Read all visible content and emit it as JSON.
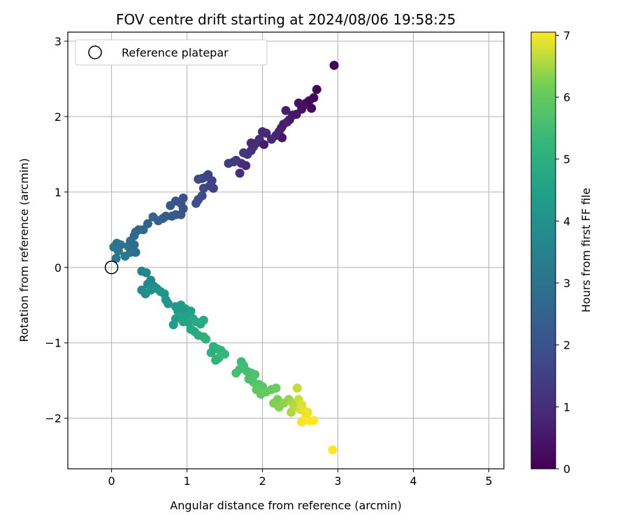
{
  "chart_data": {
    "type": "scatter",
    "title": "FOV centre drift starting at 2024/08/06 19:58:25",
    "xlabel": "Angular distance from reference (arcmin)",
    "ylabel": "Rotation from reference (arcmin)",
    "xlim": [
      -0.58,
      5.2
    ],
    "ylim": [
      -2.67,
      3.12
    ],
    "xticks": [
      0,
      1,
      2,
      3,
      4,
      5
    ],
    "yticks": [
      -2,
      -1,
      0,
      1,
      2,
      3
    ],
    "grid": true,
    "legend": {
      "placement": "top-left",
      "label": "Reference platepar"
    },
    "reference_point": {
      "x": 0,
      "y": 0
    },
    "colorbar": {
      "label": "Hours from first FF file",
      "min": 0,
      "max": 7.05,
      "ticks": [
        0,
        1,
        2,
        3,
        4,
        5,
        6,
        7
      ],
      "colormap": "viridis"
    },
    "series": [
      {
        "points": [
          [
            2.95,
            2.68,
            0.05
          ],
          [
            2.72,
            2.36,
            0.1
          ],
          [
            2.68,
            2.25,
            0.15
          ],
          [
            2.62,
            2.21,
            0.2
          ],
          [
            2.58,
            2.18,
            0.18
          ],
          [
            2.55,
            2.15,
            0.3
          ],
          [
            2.65,
            2.11,
            0.22
          ],
          [
            2.52,
            2.1,
            0.35
          ],
          [
            2.48,
            2.18,
            0.4
          ],
          [
            2.45,
            2.03,
            0.45
          ],
          [
            2.4,
            2.02,
            0.5
          ],
          [
            2.36,
            1.96,
            0.55
          ],
          [
            2.31,
            2.08,
            0.6
          ],
          [
            2.33,
            1.93,
            0.65
          ],
          [
            2.28,
            1.9,
            0.7
          ],
          [
            2.25,
            1.85,
            0.62
          ],
          [
            2.22,
            1.8,
            0.75
          ],
          [
            2.26,
            1.72,
            0.4
          ],
          [
            2.18,
            1.75,
            0.8
          ],
          [
            2.12,
            1.7,
            0.85
          ],
          [
            2.05,
            1.78,
            0.9
          ],
          [
            2.0,
            1.8,
            0.95
          ],
          [
            1.96,
            1.7,
            1.0
          ],
          [
            1.92,
            1.65,
            1.05
          ],
          [
            1.88,
            1.6,
            1.1
          ],
          [
            2.02,
            1.63,
            0.6
          ],
          [
            1.85,
            1.55,
            1.15
          ],
          [
            1.8,
            1.5,
            1.2
          ],
          [
            1.75,
            1.52,
            1.25
          ],
          [
            1.72,
            1.38,
            1.1
          ],
          [
            1.7,
            1.25,
            1.0
          ],
          [
            1.78,
            1.35,
            0.9
          ],
          [
            1.65,
            1.42,
            1.3
          ],
          [
            1.62,
            1.4,
            1.35
          ],
          [
            1.55,
            1.38,
            1.4
          ],
          [
            1.85,
            1.65,
            0.95
          ],
          [
            1.33,
            1.15,
            1.5
          ],
          [
            1.28,
            1.23,
            1.55
          ],
          [
            1.25,
            1.2,
            1.6
          ],
          [
            1.2,
            1.18,
            1.65
          ],
          [
            1.15,
            1.17,
            1.7
          ],
          [
            1.22,
            1.05,
            1.75
          ],
          [
            1.3,
            1.08,
            1.6
          ],
          [
            1.35,
            1.05,
            1.5
          ],
          [
            1.2,
            0.95,
            1.8
          ],
          [
            1.15,
            0.9,
            1.85
          ],
          [
            1.12,
            0.85,
            1.9
          ],
          [
            0.95,
            0.92,
            2.0
          ],
          [
            0.92,
            0.85,
            2.05
          ],
          [
            0.85,
            0.88,
            2.1
          ],
          [
            0.78,
            0.82,
            2.15
          ],
          [
            0.95,
            0.78,
            2.05
          ],
          [
            0.92,
            0.7,
            2.1
          ],
          [
            0.85,
            0.7,
            2.2
          ],
          [
            0.8,
            0.68,
            2.25
          ],
          [
            0.72,
            0.68,
            2.3
          ],
          [
            0.68,
            0.65,
            2.35
          ],
          [
            0.62,
            0.62,
            2.4
          ],
          [
            0.55,
            0.67,
            2.45
          ],
          [
            0.48,
            0.58,
            2.5
          ],
          [
            0.42,
            0.5,
            2.55
          ],
          [
            0.36,
            0.5,
            2.6
          ],
          [
            0.32,
            0.47,
            2.65
          ],
          [
            0.3,
            0.42,
            2.7
          ],
          [
            0.25,
            0.35,
            2.75
          ],
          [
            0.3,
            0.3,
            2.8
          ],
          [
            0.32,
            0.2,
            2.85
          ],
          [
            0.22,
            0.28,
            2.9
          ],
          [
            0.25,
            0.2,
            2.95
          ],
          [
            0.12,
            0.3,
            3.0
          ],
          [
            0.07,
            0.32,
            3.05
          ],
          [
            0.03,
            0.27,
            3.1
          ],
          [
            0.09,
            0.22,
            3.15
          ],
          [
            0.06,
            0.12,
            3.2
          ],
          [
            0.18,
            0.15,
            3.25
          ],
          [
            0.4,
            -0.05,
            3.6
          ],
          [
            0.46,
            -0.07,
            3.65
          ],
          [
            0.52,
            -0.17,
            3.7
          ],
          [
            0.48,
            -0.22,
            3.75
          ],
          [
            0.56,
            -0.25,
            3.8
          ],
          [
            0.4,
            -0.3,
            3.85
          ],
          [
            0.45,
            -0.35,
            3.9
          ],
          [
            0.52,
            -0.3,
            3.95
          ],
          [
            0.6,
            -0.28,
            4.0
          ],
          [
            0.65,
            -0.32,
            4.05
          ],
          [
            0.7,
            -0.35,
            4.1
          ],
          [
            0.72,
            -0.43,
            4.15
          ],
          [
            0.75,
            -0.48,
            4.2
          ],
          [
            0.85,
            -0.52,
            4.25
          ],
          [
            0.92,
            -0.5,
            4.3
          ],
          [
            0.88,
            -0.58,
            4.35
          ],
          [
            0.95,
            -0.6,
            4.4
          ],
          [
            0.98,
            -0.55,
            4.45
          ],
          [
            1.05,
            -0.58,
            4.5
          ],
          [
            1.0,
            -0.65,
            4.55
          ],
          [
            0.9,
            -0.65,
            4.6
          ],
          [
            0.85,
            -0.68,
            4.5
          ],
          [
            0.82,
            -0.76,
            4.4
          ],
          [
            0.95,
            -0.72,
            4.6
          ],
          [
            1.02,
            -0.73,
            4.65
          ],
          [
            1.08,
            -0.68,
            4.7
          ],
          [
            1.12,
            -0.72,
            4.75
          ],
          [
            1.18,
            -0.75,
            4.8
          ],
          [
            1.22,
            -0.7,
            4.85
          ],
          [
            1.05,
            -0.82,
            4.7
          ],
          [
            1.1,
            -0.85,
            4.8
          ],
          [
            1.15,
            -0.9,
            4.9
          ],
          [
            1.22,
            -0.92,
            4.95
          ],
          [
            1.25,
            -0.95,
            5.0
          ],
          [
            1.35,
            -1.05,
            5.05
          ],
          [
            1.4,
            -1.08,
            5.1
          ],
          [
            1.32,
            -1.13,
            5.0
          ],
          [
            1.45,
            -1.1,
            5.15
          ],
          [
            1.5,
            -1.15,
            5.2
          ],
          [
            1.42,
            -1.2,
            5.25
          ],
          [
            1.38,
            -1.23,
            5.1
          ],
          [
            1.72,
            -1.25,
            5.4
          ],
          [
            1.75,
            -1.3,
            5.45
          ],
          [
            1.7,
            -1.35,
            5.5
          ],
          [
            1.65,
            -1.4,
            5.55
          ],
          [
            1.8,
            -1.38,
            5.5
          ],
          [
            1.85,
            -1.4,
            5.6
          ],
          [
            1.82,
            -1.48,
            5.65
          ],
          [
            1.9,
            -1.42,
            5.7
          ],
          [
            1.88,
            -1.52,
            5.75
          ],
          [
            1.95,
            -1.55,
            5.8
          ],
          [
            2.0,
            -1.58,
            5.85
          ],
          [
            1.92,
            -1.62,
            5.9
          ],
          [
            1.98,
            -1.68,
            5.95
          ],
          [
            2.05,
            -1.65,
            6.0
          ],
          [
            2.12,
            -1.62,
            6.05
          ],
          [
            2.18,
            -1.6,
            6.1
          ],
          [
            2.2,
            -1.75,
            6.2
          ],
          [
            2.15,
            -1.8,
            6.25
          ],
          [
            2.22,
            -1.85,
            6.3
          ],
          [
            2.28,
            -1.8,
            6.35
          ],
          [
            2.35,
            -1.75,
            6.4
          ],
          [
            2.4,
            -1.8,
            6.5
          ],
          [
            2.38,
            -1.92,
            6.55
          ],
          [
            2.42,
            -1.85,
            6.6
          ],
          [
            2.46,
            -1.6,
            6.7
          ],
          [
            2.48,
            -1.75,
            6.75
          ],
          [
            2.5,
            -1.88,
            6.8
          ],
          [
            2.52,
            -1.82,
            6.85
          ],
          [
            2.55,
            -1.9,
            6.9
          ],
          [
            2.58,
            -1.95,
            6.95
          ],
          [
            2.52,
            -2.05,
            7.0
          ],
          [
            2.55,
            -2.02,
            7.0
          ],
          [
            2.62,
            -2.03,
            7.02
          ],
          [
            2.68,
            -2.03,
            7.03
          ],
          [
            2.6,
            -1.92,
            6.95
          ],
          [
            2.93,
            -2.42,
            7.05
          ]
        ]
      }
    ]
  }
}
